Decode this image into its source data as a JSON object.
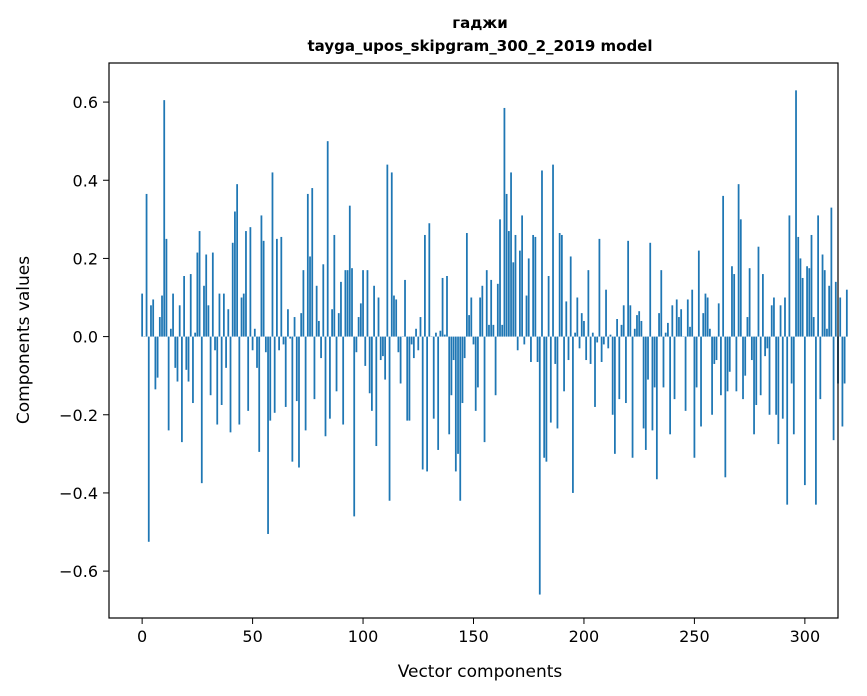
{
  "chart_data": {
    "type": "bar",
    "title": "гаджи",
    "subtitle": "tayga_upos_skipgram_300_2_2019 model",
    "xlabel": "Vector components",
    "ylabel": "Components values",
    "xlim": [
      -15,
      315
    ],
    "ylim": [
      -0.72,
      0.7
    ],
    "x_ticks": [
      0,
      50,
      100,
      150,
      200,
      250,
      300
    ],
    "y_ticks": [
      -0.6,
      -0.4,
      -0.2,
      0.0,
      0.2,
      0.4,
      0.6
    ],
    "x_tick_labels": [
      "0",
      "50",
      "100",
      "150",
      "200",
      "250",
      "300"
    ],
    "y_tick_labels": [
      "−0.6",
      "−0.4",
      "−0.2",
      "0.0",
      "0.2",
      "0.4",
      "0.6"
    ],
    "grid": false,
    "bar_color": "#1f77b4",
    "values": [
      0.11,
      0.0,
      0.365,
      -0.525,
      0.08,
      0.095,
      -0.135,
      -0.105,
      0.05,
      0.105,
      0.605,
      0.25,
      -0.24,
      0.02,
      0.11,
      -0.08,
      -0.115,
      0.08,
      -0.27,
      0.155,
      -0.085,
      -0.115,
      0.16,
      -0.17,
      0.01,
      0.215,
      0.27,
      -0.375,
      0.13,
      0.21,
      0.08,
      -0.15,
      0.215,
      -0.035,
      -0.225,
      0.11,
      -0.175,
      0.11,
      -0.08,
      0.07,
      -0.245,
      0.24,
      0.32,
      0.39,
      -0.225,
      0.1,
      0.11,
      0.27,
      -0.19,
      0.28,
      -0.035,
      0.02,
      -0.08,
      -0.295,
      0.31,
      0.245,
      -0.04,
      -0.505,
      -0.215,
      0.42,
      -0.195,
      0.25,
      -0.035,
      0.255,
      -0.02,
      -0.18,
      0.07,
      -0.005,
      -0.32,
      0.05,
      -0.165,
      -0.335,
      0.06,
      0.17,
      -0.24,
      0.365,
      0.205,
      0.38,
      -0.16,
      0.13,
      0.04,
      -0.055,
      0.185,
      -0.255,
      0.5,
      -0.21,
      0.07,
      0.26,
      -0.14,
      0.06,
      0.14,
      -0.225,
      0.17,
      0.17,
      0.335,
      0.175,
      -0.46,
      -0.04,
      0.05,
      0.085,
      0.17,
      -0.075,
      0.17,
      -0.145,
      -0.19,
      0.13,
      -0.28,
      0.1,
      -0.06,
      -0.05,
      -0.11,
      0.44,
      -0.42,
      0.42,
      0.105,
      0.095,
      -0.04,
      -0.12,
      0.0,
      0.145,
      -0.215,
      -0.215,
      -0.02,
      -0.055,
      0.02,
      -0.035,
      0.05,
      -0.34,
      0.26,
      -0.345,
      0.29,
      0.0,
      -0.21,
      0.01,
      -0.29,
      0.015,
      0.15,
      0.005,
      0.155,
      -0.25,
      -0.15,
      -0.06,
      -0.345,
      -0.3,
      -0.42,
      -0.17,
      -0.055,
      0.265,
      0.055,
      0.1,
      -0.02,
      -0.19,
      -0.13,
      0.1,
      0.13,
      -0.27,
      0.17,
      0.03,
      0.145,
      0.03,
      -0.15,
      0.135,
      0.3,
      0.03,
      0.585,
      0.365,
      0.27,
      0.42,
      0.19,
      0.26,
      -0.035,
      0.22,
      0.31,
      -0.02,
      0.105,
      0.2,
      -0.065,
      0.26,
      0.255,
      -0.065,
      -0.66,
      0.425,
      -0.31,
      -0.32,
      0.155,
      -0.22,
      0.44,
      -0.07,
      -0.235,
      0.265,
      0.26,
      -0.14,
      0.09,
      -0.06,
      0.205,
      -0.4,
      0.01,
      0.1,
      -0.03,
      0.06,
      0.04,
      -0.06,
      0.17,
      -0.07,
      0.01,
      -0.18,
      -0.015,
      0.25,
      -0.065,
      -0.02,
      0.12,
      -0.03,
      0.005,
      -0.2,
      -0.3,
      0.045,
      -0.16,
      0.03,
      0.08,
      -0.17,
      0.245,
      0.08,
      -0.31,
      0.02,
      0.055,
      0.065,
      0.04,
      -0.235,
      -0.29,
      -0.11,
      0.24,
      -0.24,
      -0.13,
      -0.365,
      0.06,
      0.17,
      -0.13,
      0.01,
      0.035,
      -0.25,
      0.08,
      -0.16,
      0.095,
      0.05,
      0.07,
      0.0,
      -0.19,
      0.095,
      0.025,
      0.12,
      -0.31,
      -0.13,
      0.22,
      -0.23,
      0.06,
      0.11,
      0.1,
      0.02,
      -0.2,
      -0.07,
      -0.06,
      0.085,
      -0.15,
      0.36,
      -0.36,
      -0.14,
      -0.09,
      0.18,
      0.16,
      -0.14,
      0.39,
      0.3,
      -0.16,
      -0.1,
      0.05,
      0.175,
      -0.06,
      -0.25,
      -0.175,
      0.23,
      -0.15,
      0.16,
      -0.05,
      -0.03,
      -0.2,
      0.08,
      0.1,
      -0.2,
      -0.275,
      0.08,
      -0.21,
      0.1,
      -0.43,
      0.31,
      -0.12,
      -0.25,
      0.63,
      0.255,
      0.2,
      0.15,
      -0.38,
      0.18,
      0.175,
      0.26,
      0.05,
      -0.43,
      0.31,
      -0.16,
      0.21,
      0.17,
      0.02,
      0.13,
      0.33,
      -0.265,
      0.14,
      -0.12,
      0.1,
      -0.23,
      -0.12,
      0.12
    ]
  }
}
